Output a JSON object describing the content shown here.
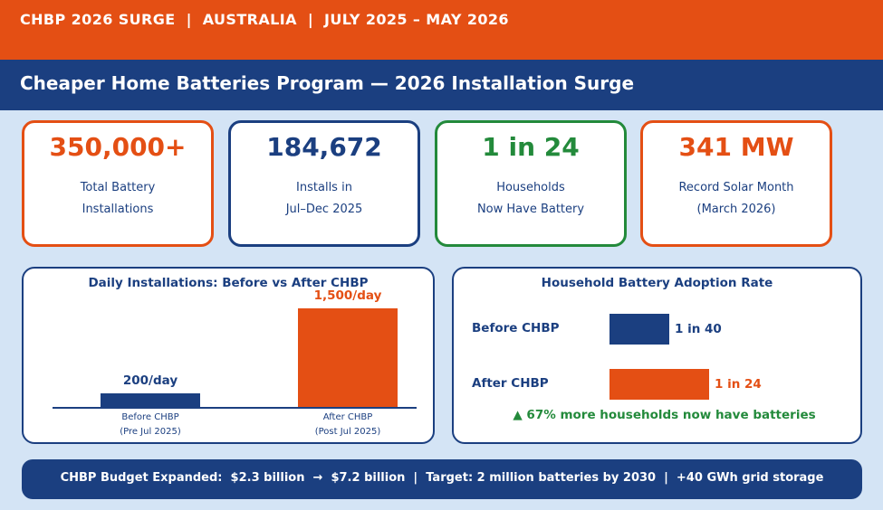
{
  "header": {
    "top_line": "CHBP 2026 SURGE  |  AUSTRALIA  |  JULY 2025 – MAY 2026",
    "title": "Cheaper Home Batteries Program — 2026 Installation Surge"
  },
  "colors": {
    "orange": "#e44f14",
    "navy": "#1b3f80",
    "green": "#238a3b",
    "background": "#d4e4f5"
  },
  "stats": [
    {
      "value": "350,000+",
      "line1": "Total Battery",
      "line2": "Installations",
      "color": "orange"
    },
    {
      "value": "184,672",
      "line1": "Installs in",
      "line2": "Jul–Dec 2025",
      "color": "navy"
    },
    {
      "value": "1 in 24",
      "line1": "Households",
      "line2": "Now Have Battery",
      "color": "green"
    },
    {
      "value": "341 MW",
      "line1": "Record Solar Month",
      "line2": "(March 2026)",
      "color": "orange"
    }
  ],
  "chart_data": [
    {
      "type": "bar",
      "title": "Daily Installations: Before vs After CHBP",
      "categories": [
        "Before CHBP\n(Pre Jul 2025)",
        "After CHBP\n(Post Jul 2025)"
      ],
      "category_lines": [
        [
          "Before CHBP",
          "(Pre Jul 2025)"
        ],
        [
          "After CHBP",
          "(Post Jul 2025)"
        ]
      ],
      "values": [
        200,
        1500
      ],
      "data_labels": [
        "200/day",
        "1,500/day"
      ],
      "bar_colors": [
        "#1b3f80",
        "#e44f14"
      ],
      "ylim": [
        0,
        1500
      ],
      "grid": false,
      "xlabel": "",
      "ylabel": ""
    },
    {
      "type": "bar",
      "orientation": "horizontal",
      "title": "Household Battery Adoption Rate",
      "categories": [
        "Before CHBP",
        "After CHBP"
      ],
      "values": [
        0.025,
        0.04167
      ],
      "data_labels": [
        "1 in 40",
        "1 in 24"
      ],
      "bar_colors": [
        "#1b3f80",
        "#e44f14"
      ],
      "annotation": "▲ 67% more households now have batteries",
      "grid": false
    }
  ],
  "footer": {
    "text": "CHBP Budget Expanded:  $2.3 billion  →  $7.2 billion  |  Target: 2 million batteries by 2030  |  +40 GWh grid storage"
  }
}
